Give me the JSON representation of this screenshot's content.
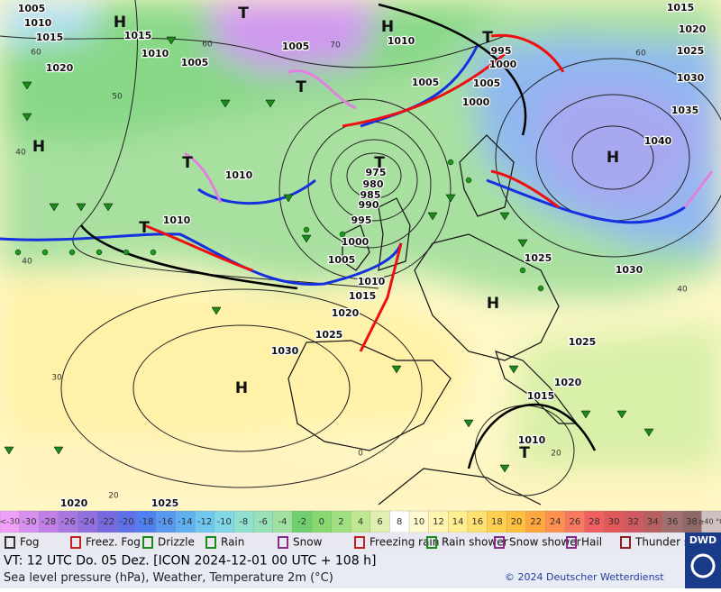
{
  "map": {
    "isobar_labels": [
      "1005",
      "1010",
      "1015",
      "1015",
      "1010",
      "1005",
      "1020",
      "1005",
      "1010",
      "1015",
      "1020",
      "1025",
      "1030",
      "1035",
      "1040",
      "995",
      "1000",
      "1005",
      "1005",
      "1000",
      "975",
      "980",
      "985",
      "990",
      "995",
      "1000",
      "1005",
      "1010",
      "1015",
      "1020",
      "1025",
      "1030",
      "1010",
      "1010",
      "1025",
      "1030",
      "1025",
      "1020",
      "1015",
      "1010",
      "1020",
      "1025"
    ],
    "centers": [
      "H",
      "T",
      "H",
      "H",
      "T",
      "T",
      "T",
      "T",
      "H",
      "H",
      "H",
      "T",
      "T"
    ],
    "temperature_labels": [
      "60",
      "50",
      "40",
      "40",
      "30",
      "20",
      "0",
      "20",
      "40",
      "60",
      "70",
      "60"
    ]
  },
  "scale": {
    "low_label": "<-30",
    "values": [
      -30,
      -28,
      -26,
      -24,
      -22,
      -20,
      -18,
      -16,
      -14,
      -12,
      -10,
      -8,
      -6,
      -4,
      -2,
      0,
      2,
      4,
      6,
      8,
      10,
      12,
      14,
      16,
      18,
      20,
      22,
      24,
      26,
      28,
      30,
      32,
      34,
      36,
      38
    ],
    "high_label": "≥40 °C",
    "colors": [
      "#f0a0f8",
      "#d890f0",
      "#c080e8",
      "#a878e0",
      "#9070e0",
      "#7868e0",
      "#6070e8",
      "#5080f0",
      "#5898f0",
      "#60b0f0",
      "#70c8f0",
      "#80d8e8",
      "#90e0d0",
      "#98e0b8",
      "#a0e0a0",
      "#70d070",
      "#88d870",
      "#a0e080",
      "#c0e890",
      "#e0f0b0",
      "#ffffff",
      "#fffad0",
      "#fff4b0",
      "#ffee90",
      "#ffe070",
      "#ffd050",
      "#ffc040",
      "#ffa840",
      "#ff9050",
      "#f87860",
      "#f06060",
      "#e05858",
      "#d05860",
      "#b86060",
      "#a07070",
      "#906868",
      "#d0c0c0"
    ]
  },
  "legend": [
    "Fog",
    "Freez. Fog",
    "Drizzle",
    "Rain",
    "Snow",
    "Freezing rain",
    "Rain shower",
    "Snow shower",
    "Hail",
    "Thunder storm"
  ],
  "footer": {
    "valid_time": "VT: 12 UTC Do.  05 Dez. [ICON 2024-12-01  00 UTC + 108 h]",
    "description": "Sea level pressure (hPa), Weather, Temperature 2m (°C)",
    "copyright": "© 2024 Deutscher Wetterdienst",
    "logo": "DWD"
  }
}
